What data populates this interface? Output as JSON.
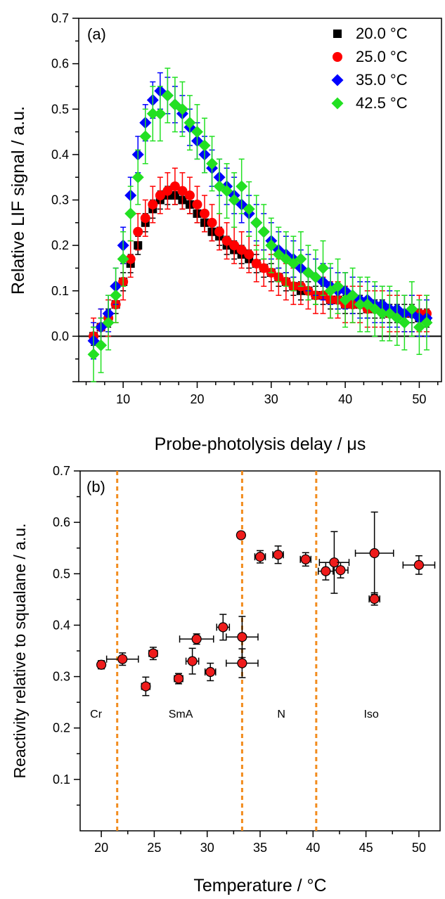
{
  "chart_data": [
    {
      "type": "scatter",
      "panel_label": "(a)",
      "xlabel": "Probe-photolysis delay / μs",
      "ylabel": "Relative LIF signal / a.u.",
      "xlim": [
        4,
        53
      ],
      "ylim": [
        -0.1,
        0.7
      ],
      "xticks": [
        10,
        20,
        30,
        40,
        50
      ],
      "yticks": [
        0.0,
        0.1,
        0.2,
        0.3,
        0.4,
        0.5,
        0.6,
        0.7
      ],
      "ytick_labels": [
        "0.0",
        "0.1",
        "0.2",
        "0.3",
        "0.4",
        "0.5",
        "0.6",
        "0.7"
      ],
      "zero_line": 0,
      "legend_position": "top-right",
      "series": [
        {
          "name": "20.0 °C",
          "marker": "square",
          "color": "#000000",
          "x": [
            6,
            7,
            8,
            9,
            10,
            11,
            12,
            13,
            14,
            15,
            16,
            17,
            18,
            19,
            20,
            21,
            22,
            23,
            24,
            25,
            26,
            27,
            28,
            29,
            30,
            31,
            32,
            33,
            34,
            35,
            36,
            37,
            38,
            39,
            40,
            41,
            42,
            43,
            44,
            45,
            46,
            47,
            48,
            49,
            50,
            51
          ],
          "y": [
            0.0,
            0.02,
            0.04,
            0.07,
            0.12,
            0.16,
            0.2,
            0.25,
            0.28,
            0.3,
            0.31,
            0.31,
            0.3,
            0.29,
            0.27,
            0.25,
            0.23,
            0.22,
            0.2,
            0.19,
            0.18,
            0.17,
            0.16,
            0.15,
            0.14,
            0.13,
            0.12,
            0.11,
            0.1,
            0.1,
            0.09,
            0.09,
            0.08,
            0.08,
            0.07,
            0.07,
            0.07,
            0.06,
            0.06,
            0.06,
            0.05,
            0.05,
            0.05,
            0.05,
            0.04,
            0.04
          ],
          "yerr": 0.02
        },
        {
          "name": "25.0 °C",
          "marker": "circle",
          "color": "#ff0000",
          "x": [
            6,
            7,
            8,
            9,
            10,
            11,
            12,
            13,
            14,
            15,
            16,
            17,
            18,
            19,
            20,
            21,
            22,
            23,
            24,
            25,
            26,
            27,
            28,
            29,
            30,
            31,
            32,
            33,
            34,
            35,
            36,
            37,
            38,
            39,
            40,
            41,
            42,
            43,
            44,
            45,
            46,
            47,
            48,
            49,
            50,
            51
          ],
          "y": [
            0.0,
            0.02,
            0.04,
            0.07,
            0.12,
            0.17,
            0.23,
            0.26,
            0.29,
            0.31,
            0.32,
            0.33,
            0.32,
            0.31,
            0.29,
            0.27,
            0.25,
            0.23,
            0.21,
            0.2,
            0.19,
            0.18,
            0.16,
            0.15,
            0.14,
            0.13,
            0.12,
            0.11,
            0.11,
            0.1,
            0.09,
            0.09,
            0.08,
            0.08,
            0.07,
            0.07,
            0.07,
            0.06,
            0.06,
            0.06,
            0.05,
            0.05,
            0.05,
            0.05,
            0.05,
            0.05
          ],
          "yerr": 0.04
        },
        {
          "name": "35.0 °C",
          "marker": "diamond",
          "color": "#0000ff",
          "x": [
            6,
            7,
            8,
            9,
            10,
            11,
            12,
            13,
            14,
            15,
            16,
            17,
            18,
            19,
            20,
            21,
            22,
            23,
            24,
            25,
            26,
            27,
            28,
            29,
            30,
            31,
            32,
            33,
            34,
            35,
            36,
            37,
            38,
            39,
            40,
            41,
            42,
            43,
            44,
            45,
            46,
            47,
            48,
            49,
            50,
            51
          ],
          "y": [
            -0.01,
            0.02,
            0.05,
            0.11,
            0.2,
            0.31,
            0.4,
            0.47,
            0.52,
            0.54,
            0.53,
            0.51,
            0.49,
            0.46,
            0.43,
            0.4,
            0.37,
            0.35,
            0.33,
            0.31,
            0.29,
            0.27,
            0.25,
            0.23,
            0.21,
            0.19,
            0.18,
            0.17,
            0.15,
            0.14,
            0.13,
            0.12,
            0.11,
            0.1,
            0.1,
            0.09,
            0.08,
            0.08,
            0.07,
            0.07,
            0.06,
            0.06,
            0.05,
            0.05,
            0.04,
            0.04
          ],
          "yerr": 0.04
        },
        {
          "name": "42.5 °C",
          "marker": "diamond",
          "color": "#22e022",
          "x": [
            6,
            7,
            8,
            9,
            10,
            11,
            12,
            13,
            14,
            15,
            16,
            17,
            18,
            19,
            20,
            21,
            22,
            23,
            24,
            25,
            26,
            27,
            28,
            29,
            30,
            31,
            32,
            33,
            34,
            35,
            36,
            37,
            38,
            39,
            40,
            41,
            42,
            43,
            44,
            45,
            46,
            47,
            48,
            49,
            50,
            51
          ],
          "y": [
            -0.04,
            -0.02,
            0.03,
            0.09,
            0.17,
            0.27,
            0.35,
            0.44,
            0.49,
            0.49,
            0.53,
            0.51,
            0.5,
            0.47,
            0.45,
            0.42,
            0.38,
            0.33,
            0.32,
            0.3,
            0.33,
            0.28,
            0.25,
            0.23,
            0.2,
            0.18,
            0.17,
            0.16,
            0.17,
            0.14,
            0.13,
            0.15,
            0.1,
            0.11,
            0.08,
            0.09,
            0.07,
            0.07,
            0.06,
            0.05,
            0.05,
            0.04,
            0.03,
            0.06,
            0.02,
            0.03
          ],
          "yerr": 0.06
        }
      ]
    },
    {
      "type": "scatter",
      "panel_label": "(b)",
      "xlabel": "Temperature / °C",
      "ylabel": "Reactivity relative to squalane / a.u.",
      "xlim": [
        18,
        52
      ],
      "ylim": [
        0.0,
        0.7
      ],
      "xticks": [
        20,
        25,
        30,
        35,
        40,
        45,
        50
      ],
      "yticks": [
        0.1,
        0.2,
        0.3,
        0.4,
        0.5,
        0.6,
        0.7
      ],
      "ytick_labels": [
        "0.1",
        "0.2",
        "0.3",
        "0.4",
        "0.5",
        "0.6",
        "0.7"
      ],
      "phase_boundaries": [
        21.5,
        33.3,
        40.3
      ],
      "phase_labels": [
        {
          "text": "Cr",
          "x": 19.5,
          "y": 0.22
        },
        {
          "text": "SmA",
          "x": 27.5,
          "y": 0.22
        },
        {
          "text": "N",
          "x": 37.0,
          "y": 0.22
        },
        {
          "text": "Iso",
          "x": 45.5,
          "y": 0.22
        }
      ],
      "points": [
        {
          "x": 20.0,
          "y": 0.323,
          "xerr": 0.3,
          "yerr": 0.008
        },
        {
          "x": 22.0,
          "y": 0.334,
          "xerr": 1.5,
          "yerr": 0.012
        },
        {
          "x": 24.2,
          "y": 0.281,
          "xerr": 0.4,
          "yerr": 0.018
        },
        {
          "x": 24.9,
          "y": 0.345,
          "xerr": 0.4,
          "yerr": 0.012
        },
        {
          "x": 27.3,
          "y": 0.296,
          "xerr": 0.4,
          "yerr": 0.01
        },
        {
          "x": 28.6,
          "y": 0.33,
          "xerr": 0.6,
          "yerr": 0.025
        },
        {
          "x": 29.0,
          "y": 0.373,
          "xerr": 1.6,
          "yerr": 0.01
        },
        {
          "x": 30.3,
          "y": 0.309,
          "xerr": 0.5,
          "yerr": 0.017
        },
        {
          "x": 31.5,
          "y": 0.396,
          "xerr": 0.6,
          "yerr": 0.025
        },
        {
          "x": 33.2,
          "y": 0.575,
          "xerr": 0.3,
          "yerr": 0.006
        },
        {
          "x": 33.3,
          "y": 0.377,
          "xerr": 1.5,
          "yerr": 0.04
        },
        {
          "x": 33.3,
          "y": 0.326,
          "xerr": 1.5,
          "yerr": 0.028
        },
        {
          "x": 35.0,
          "y": 0.533,
          "xerr": 0.5,
          "yerr": 0.012
        },
        {
          "x": 36.7,
          "y": 0.537,
          "xerr": 0.5,
          "yerr": 0.017
        },
        {
          "x": 39.3,
          "y": 0.528,
          "xerr": 0.5,
          "yerr": 0.013
        },
        {
          "x": 41.2,
          "y": 0.505,
          "xerr": 0.7,
          "yerr": 0.017
        },
        {
          "x": 42.0,
          "y": 0.522,
          "xerr": 1.4,
          "yerr": 0.06
        },
        {
          "x": 42.6,
          "y": 0.507,
          "xerr": 0.7,
          "yerr": 0.015
        },
        {
          "x": 45.8,
          "y": 0.54,
          "xerr": 1.8,
          "yerr": 0.08
        },
        {
          "x": 45.8,
          "y": 0.451,
          "xerr": 0.5,
          "yerr": 0.012
        },
        {
          "x": 50.0,
          "y": 0.517,
          "xerr": 1.5,
          "yerr": 0.018
        }
      ]
    }
  ]
}
